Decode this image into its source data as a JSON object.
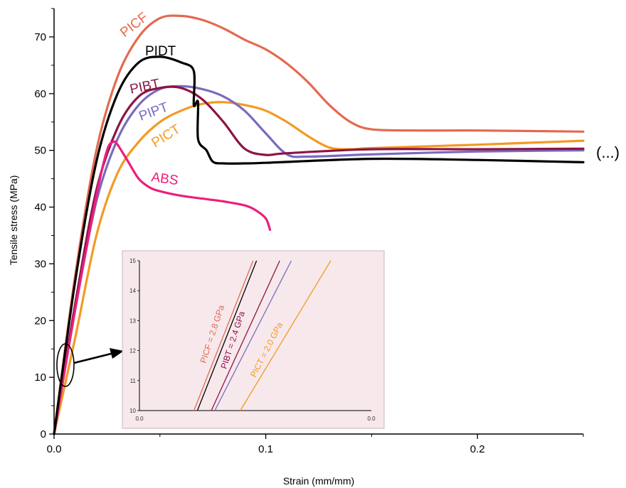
{
  "chart_data": {
    "type": "line",
    "title": "",
    "xlabel": "Strain (mm/mm)",
    "ylabel": "Tensile stress (MPa)",
    "xlim": [
      0,
      0.25
    ],
    "ylim": [
      0,
      75
    ],
    "x_ticks": [
      "0.0",
      "0.1",
      "0.2"
    ],
    "x_tick_values": [
      0,
      0.1,
      0.2
    ],
    "y_ticks": [
      "0",
      "10",
      "20",
      "30",
      "40",
      "50",
      "60",
      "70"
    ],
    "y_tick_values": [
      0,
      10,
      20,
      30,
      40,
      50,
      60,
      70
    ],
    "continuation_label": "(...)",
    "series": [
      {
        "name": "PICF",
        "color": "#e36a50",
        "points": [
          [
            0,
            0
          ],
          [
            0.01,
            28
          ],
          [
            0.02,
            50
          ],
          [
            0.03,
            63
          ],
          [
            0.04,
            70
          ],
          [
            0.05,
            73.3
          ],
          [
            0.06,
            73.7
          ],
          [
            0.07,
            73
          ],
          [
            0.08,
            71.5
          ],
          [
            0.09,
            69.5
          ],
          [
            0.1,
            67.8
          ],
          [
            0.11,
            65.3
          ],
          [
            0.12,
            62
          ],
          [
            0.13,
            58
          ],
          [
            0.14,
            55
          ],
          [
            0.15,
            53.7
          ],
          [
            0.17,
            53.5
          ],
          [
            0.2,
            53.5
          ],
          [
            0.25,
            53.3
          ]
        ]
      },
      {
        "name": "PIDT",
        "color": "#000000",
        "points": [
          [
            0,
            0
          ],
          [
            0.01,
            27
          ],
          [
            0.02,
            48
          ],
          [
            0.03,
            60
          ],
          [
            0.04,
            65.5
          ],
          [
            0.05,
            66.5
          ],
          [
            0.06,
            65.5
          ],
          [
            0.066,
            64
          ],
          [
            0.066,
            58
          ],
          [
            0.068,
            58.5
          ],
          [
            0.068,
            52
          ],
          [
            0.072,
            50
          ],
          [
            0.075,
            48
          ],
          [
            0.08,
            47.7
          ],
          [
            0.09,
            47.7
          ],
          [
            0.1,
            47.8
          ],
          [
            0.15,
            48.5
          ],
          [
            0.2,
            48.3
          ],
          [
            0.25,
            47.9
          ]
        ]
      },
      {
        "name": "PIBT",
        "color": "#8c1446",
        "points": [
          [
            0,
            0
          ],
          [
            0.01,
            23
          ],
          [
            0.02,
            43
          ],
          [
            0.03,
            54
          ],
          [
            0.04,
            59.5
          ],
          [
            0.05,
            61
          ],
          [
            0.06,
            61
          ],
          [
            0.07,
            59
          ],
          [
            0.08,
            55
          ],
          [
            0.09,
            50.3
          ],
          [
            0.1,
            49.2
          ],
          [
            0.11,
            49.5
          ],
          [
            0.15,
            50.2
          ],
          [
            0.2,
            50.2
          ],
          [
            0.25,
            50.3
          ]
        ]
      },
      {
        "name": "PIPT",
        "color": "#7b6bbd",
        "points": [
          [
            0,
            0
          ],
          [
            0.01,
            22
          ],
          [
            0.02,
            41
          ],
          [
            0.03,
            52
          ],
          [
            0.04,
            58
          ],
          [
            0.05,
            60.8
          ],
          [
            0.06,
            61.3
          ],
          [
            0.07,
            60.8
          ],
          [
            0.08,
            59.5
          ],
          [
            0.09,
            57
          ],
          [
            0.1,
            53
          ],
          [
            0.11,
            49.3
          ],
          [
            0.12,
            48.9
          ],
          [
            0.15,
            49.3
          ],
          [
            0.2,
            49.8
          ],
          [
            0.25,
            50
          ]
        ]
      },
      {
        "name": "PICT",
        "color": "#f39a23",
        "points": [
          [
            0,
            0
          ],
          [
            0.01,
            17
          ],
          [
            0.02,
            35
          ],
          [
            0.03,
            46
          ],
          [
            0.04,
            51.5
          ],
          [
            0.05,
            55
          ],
          [
            0.06,
            57
          ],
          [
            0.07,
            58.2
          ],
          [
            0.08,
            58.5
          ],
          [
            0.09,
            58
          ],
          [
            0.1,
            57
          ],
          [
            0.11,
            55
          ],
          [
            0.12,
            52.5
          ],
          [
            0.13,
            50.5
          ],
          [
            0.14,
            50.2
          ],
          [
            0.15,
            50.4
          ],
          [
            0.2,
            51
          ],
          [
            0.25,
            51.7
          ]
        ]
      },
      {
        "name": "ABS",
        "color": "#ec1e7c",
        "points": [
          [
            0,
            0
          ],
          [
            0.01,
            22
          ],
          [
            0.02,
            42
          ],
          [
            0.025,
            50
          ],
          [
            0.028,
            51.5
          ],
          [
            0.03,
            51
          ],
          [
            0.035,
            48
          ],
          [
            0.04,
            45
          ],
          [
            0.045,
            43.5
          ],
          [
            0.05,
            42.8
          ],
          [
            0.06,
            42
          ],
          [
            0.07,
            41.5
          ],
          [
            0.08,
            41
          ],
          [
            0.09,
            40.3
          ],
          [
            0.095,
            39.5
          ],
          [
            0.1,
            38
          ],
          [
            0.102,
            36
          ]
        ]
      }
    ],
    "inset": {
      "background": "#f7e8ec",
      "x_ticks": [
        "0.0",
        "0.0"
      ],
      "y_ticks": [
        "10",
        "11",
        "12",
        "13",
        "14",
        "15"
      ],
      "y_tick_values": [
        10,
        11,
        12,
        13,
        14,
        15
      ],
      "ylim": [
        10,
        15
      ],
      "xlim": [
        0,
        1
      ],
      "lines": [
        {
          "series": "PICF",
          "color": "#e36a50",
          "x": [
            0.235,
            0.49
          ]
        },
        {
          "series": "PIDT",
          "color": "#000000",
          "x": [
            0.25,
            0.505
          ]
        },
        {
          "series": "PIBT",
          "color": "#8c1446",
          "x": [
            0.31,
            0.605
          ]
        },
        {
          "series": "PIPT",
          "color": "#7b6bbd",
          "x": [
            0.325,
            0.655
          ]
        },
        {
          "series": "PICT",
          "color": "#f39a23",
          "x": [
            0.435,
            0.825
          ]
        }
      ],
      "annotations": [
        {
          "text": "PICF = 2.8 GPa",
          "color": "#e36a50"
        },
        {
          "text": "PIBT = 2.4 GPa",
          "color": "#8c1446"
        },
        {
          "text": "PICT = 2.0 GPa",
          "color": "#f39a23"
        }
      ]
    }
  }
}
